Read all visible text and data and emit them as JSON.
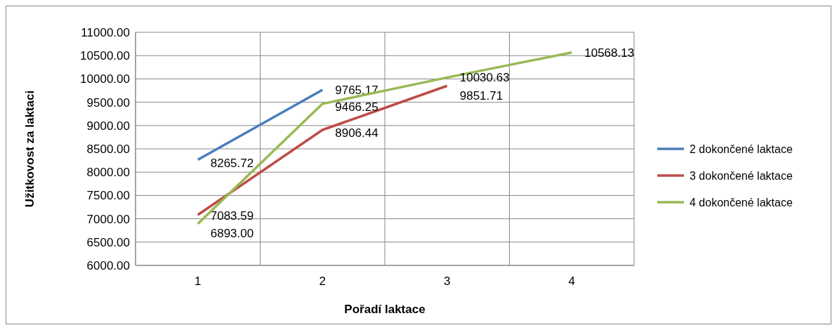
{
  "chart_data": {
    "type": "line",
    "xlabel": "Pořadí laktace",
    "ylabel": "Užitkovost za laktaci",
    "categories": [
      "1",
      "2",
      "3",
      "4"
    ],
    "series": [
      {
        "name": "2 dokončené laktace",
        "color": "#4a7ebb",
        "values": [
          8265.72,
          9765.17,
          null,
          null
        ],
        "value_labels": [
          "8265.72",
          "9765.17",
          null,
          null
        ]
      },
      {
        "name": "3 dokončené laktace",
        "color": "#be4b48",
        "values": [
          7083.59,
          8906.44,
          9851.71,
          null
        ],
        "value_labels": [
          "7083.59",
          "8906.44",
          "9851.71",
          null
        ]
      },
      {
        "name": "4 dokončené laktace",
        "color": "#98b954",
        "values": [
          6893.0,
          9466.25,
          10030.63,
          10568.13
        ],
        "value_labels": [
          "6893.00",
          "9466.25",
          "10030.63",
          "10568.13"
        ]
      }
    ],
    "ylim": [
      6000,
      11000
    ],
    "yticks": [
      {
        "value": 6000,
        "label": "6000.00"
      },
      {
        "value": 6500,
        "label": "6500.00"
      },
      {
        "value": 7000,
        "label": "7000.00"
      },
      {
        "value": 7500,
        "label": "7500.00"
      },
      {
        "value": 8000,
        "label": "8000.00"
      },
      {
        "value": 8500,
        "label": "8500.00"
      },
      {
        "value": 9000,
        "label": "9000.00"
      },
      {
        "value": 9500,
        "label": "9500.00"
      },
      {
        "value": 10000,
        "label": "10000.00"
      },
      {
        "value": 10500,
        "label": "10500.00"
      },
      {
        "value": 11000,
        "label": "11000.00"
      }
    ],
    "grid": true,
    "legend": "right",
    "marker": "none",
    "line_style": "solid"
  }
}
